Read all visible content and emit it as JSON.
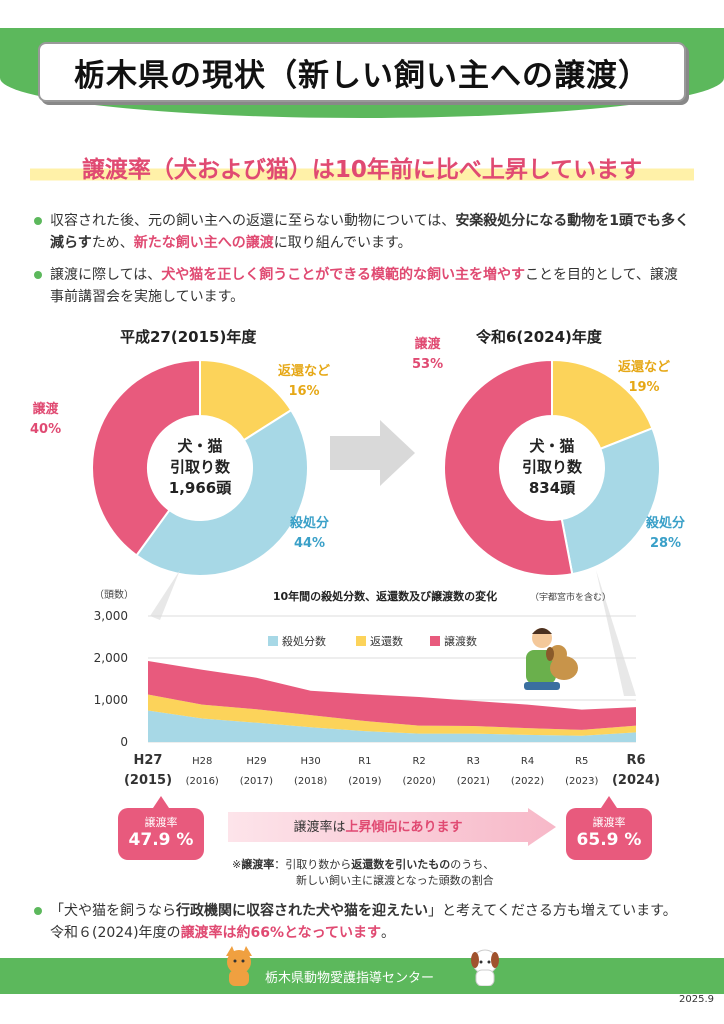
{
  "title": "栃木県の現状（新しい飼い主への譲渡）",
  "subtitle": "譲渡率（犬および猫）は10年前に比べ上昇しています",
  "bullets": {
    "b1": {
      "p1": "収容された後、元の飼い主への返還に至らない動物については、",
      "p2": "安楽殺処分になる動物を1頭でも多く減らす",
      "p3": "ため、",
      "p4": "新たな飼い主への譲渡",
      "p5": "に取り組んでいます。"
    },
    "b2": {
      "p1": "譲渡に際しては、",
      "p2": "犬や猫を正しく飼うことができる模範的な飼い主を増やす",
      "p3": "ことを目的として、譲渡事前講習会を実施しています。"
    }
  },
  "pie_left": {
    "year": "平成27(2015)年度",
    "center": [
      "犬・猫",
      "引取り数",
      "1,966頭"
    ],
    "labels": {
      "adopt": "譲渡",
      "adopt_pct": "40%",
      "return": "返還など",
      "return_pct": "16%",
      "kill": "殺処分",
      "kill_pct": "44%"
    }
  },
  "pie_right": {
    "year": "令和6(2024)年度",
    "center": [
      "犬・猫",
      "引取り数",
      "834頭"
    ],
    "labels": {
      "adopt": "譲渡",
      "adopt_pct": "53%",
      "return": "返還など",
      "return_pct": "19%",
      "kill": "殺処分",
      "kill_pct": "28%"
    }
  },
  "chart_data": [
    {
      "type": "pie",
      "title": "平成27(2015)年度",
      "categories": [
        "返還など",
        "殺処分",
        "譲渡"
      ],
      "values": [
        16,
        44,
        40
      ],
      "colors": [
        "#fcd35a",
        "#a7d8e6",
        "#e85a7d"
      ]
    },
    {
      "type": "pie",
      "title": "令和6(2024)年度",
      "categories": [
        "返還など",
        "殺処分",
        "譲渡"
      ],
      "values": [
        19,
        28,
        53
      ],
      "colors": [
        "#fcd35a",
        "#a7d8e6",
        "#e85a7d"
      ]
    },
    {
      "type": "area",
      "title": "10年間の殺処分数、返還数及び譲渡数の変化",
      "title_note": "（宇都宮市を含む）",
      "ylabel": "（頭数）",
      "ylim": [
        0,
        3000
      ],
      "yticks": [
        "3,000",
        "2,000",
        "1,000",
        "0"
      ],
      "categories": [
        "H27",
        "H28",
        "H29",
        "H30",
        "R1",
        "R2",
        "R3",
        "R4",
        "R5",
        "R6"
      ],
      "category_years": [
        "(2015)",
        "(2016)",
        "(2017)",
        "(2018)",
        "(2019)",
        "(2020)",
        "(2021)",
        "(2022)",
        "(2023)",
        "(2024)"
      ],
      "series": [
        {
          "name": "殺処分数",
          "color": "#a7d8e6",
          "values": [
            750,
            560,
            460,
            350,
            260,
            200,
            200,
            170,
            150,
            230
          ]
        },
        {
          "name": "返還数",
          "color": "#fcd35a",
          "values": [
            380,
            330,
            320,
            290,
            240,
            190,
            180,
            160,
            140,
            160
          ]
        },
        {
          "name": "譲渡数",
          "color": "#e85a7d",
          "values": [
            800,
            830,
            750,
            580,
            640,
            680,
            600,
            560,
            480,
            440
          ]
        }
      ]
    }
  ],
  "rates": {
    "left_label": "譲渡率",
    "left_value": "47.9 %",
    "right_label": "譲渡率",
    "right_value": "65.9 %",
    "mid_p1": "譲渡率は",
    "mid_p2": "上昇傾向にあります"
  },
  "note": {
    "mark": "※",
    "term": "譲渡率",
    "p1": "：引取り数から",
    "p2": "返還数を引いたもの",
    "p3": "のうち、",
    "line2": "新しい飼い主に譲渡となった頭数の割合"
  },
  "bottom_bullet": {
    "p1": "「犬や猫を飼うなら",
    "p2": "行政機関に収容された犬や猫を迎えたい",
    "p3": "」と考えてくださる方も増えています。令和６(2024)年度の",
    "p4": "譲渡率は約66%となっています",
    "p5": "。"
  },
  "footer": {
    "org": "栃木県動物愛護指導センター",
    "date": "2025.9"
  }
}
